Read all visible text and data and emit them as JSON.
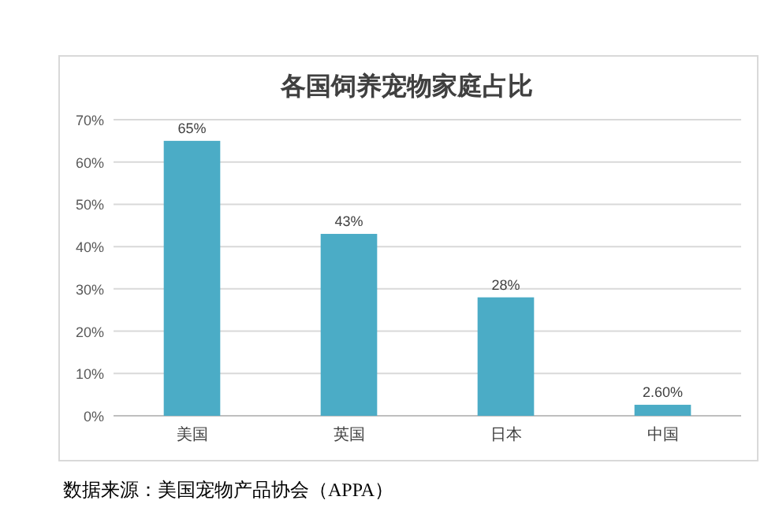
{
  "chart_data": {
    "type": "bar",
    "title": "各国饲养宠物家庭占比",
    "categories": [
      "美国",
      "英国",
      "日本",
      "中国"
    ],
    "values": [
      65,
      43,
      28,
      2.6
    ],
    "value_labels": [
      "65%",
      "43%",
      "28%",
      "2.60%"
    ],
    "color": "#4bacc6",
    "ylim": [
      0,
      70
    ],
    "yticks": [
      {
        "value": 0,
        "label": "0%"
      },
      {
        "value": 10,
        "label": "10%"
      },
      {
        "value": 20,
        "label": "20%"
      },
      {
        "value": 30,
        "label": "30%"
      },
      {
        "value": 40,
        "label": "40%"
      },
      {
        "value": 50,
        "label": "50%"
      },
      {
        "value": 60,
        "label": "60%"
      },
      {
        "value": 70,
        "label": "70%"
      }
    ],
    "grid": "y",
    "annotations": [
      "数据来源：美国宠物产品协会（APPA）"
    ]
  }
}
